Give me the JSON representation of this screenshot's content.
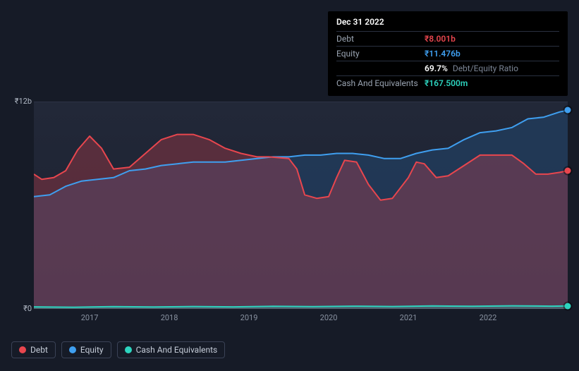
{
  "tooltip": {
    "date": "Dec 31 2022",
    "rows": [
      {
        "label": "Debt",
        "value": "₹8.001b",
        "cls": "val-debt"
      },
      {
        "label": "Equity",
        "value": "₹11.476b",
        "cls": "val-equity"
      },
      {
        "label": "",
        "ratio": "69.7%",
        "ratio_label": "Debt/Equity Ratio"
      },
      {
        "label": "Cash And Equivalents",
        "value": "₹167.500m",
        "cls": "val-cash"
      }
    ]
  },
  "chart": {
    "type": "area",
    "y": {
      "min": 0,
      "max": 12,
      "labels": [
        {
          "text": "₹12b",
          "v": 12
        },
        {
          "text": "₹0",
          "v": 0
        }
      ],
      "grid_color": "#3a4154"
    },
    "x": {
      "min": 2016.3,
      "max": 2023.0,
      "ticks": [
        {
          "text": "2017",
          "v": 2017
        },
        {
          "text": "2018",
          "v": 2018
        },
        {
          "text": "2019",
          "v": 2019
        },
        {
          "text": "2020",
          "v": 2020
        },
        {
          "text": "2021",
          "v": 2021
        },
        {
          "text": "2022",
          "v": 2022
        }
      ]
    },
    "series": [
      {
        "name": "Debt",
        "color": "#e8464e",
        "fill": "rgba(232,70,78,0.28)",
        "line_width": 2,
        "data": [
          [
            2016.3,
            7.8
          ],
          [
            2016.4,
            7.5
          ],
          [
            2016.55,
            7.6
          ],
          [
            2016.7,
            8.0
          ],
          [
            2016.85,
            9.2
          ],
          [
            2017.0,
            10.0
          ],
          [
            2017.15,
            9.3
          ],
          [
            2017.3,
            8.1
          ],
          [
            2017.5,
            8.2
          ],
          [
            2017.7,
            9.0
          ],
          [
            2017.9,
            9.8
          ],
          [
            2018.1,
            10.1
          ],
          [
            2018.3,
            10.1
          ],
          [
            2018.5,
            9.8
          ],
          [
            2018.7,
            9.3
          ],
          [
            2018.9,
            9.0
          ],
          [
            2019.1,
            8.8
          ],
          [
            2019.25,
            8.8
          ],
          [
            2019.5,
            8.7
          ],
          [
            2019.6,
            8.1
          ],
          [
            2019.7,
            6.6
          ],
          [
            2019.85,
            6.4
          ],
          [
            2020.0,
            6.5
          ],
          [
            2020.1,
            7.6
          ],
          [
            2020.2,
            8.6
          ],
          [
            2020.35,
            8.5
          ],
          [
            2020.5,
            7.2
          ],
          [
            2020.65,
            6.3
          ],
          [
            2020.8,
            6.4
          ],
          [
            2021.0,
            7.6
          ],
          [
            2021.1,
            8.5
          ],
          [
            2021.2,
            8.4
          ],
          [
            2021.35,
            7.6
          ],
          [
            2021.5,
            7.7
          ],
          [
            2021.7,
            8.3
          ],
          [
            2021.9,
            8.9
          ],
          [
            2022.1,
            8.9
          ],
          [
            2022.3,
            8.9
          ],
          [
            2022.45,
            8.4
          ],
          [
            2022.6,
            7.8
          ],
          [
            2022.75,
            7.8
          ],
          [
            2022.9,
            7.9
          ],
          [
            2023.0,
            8.0
          ]
        ]
      },
      {
        "name": "Equity",
        "color": "#3f9ff0",
        "fill": "rgba(35,71,112,0.55)",
        "line_width": 2,
        "data": [
          [
            2016.3,
            6.5
          ],
          [
            2016.5,
            6.6
          ],
          [
            2016.7,
            7.1
          ],
          [
            2016.9,
            7.4
          ],
          [
            2017.1,
            7.5
          ],
          [
            2017.3,
            7.6
          ],
          [
            2017.5,
            8.0
          ],
          [
            2017.7,
            8.1
          ],
          [
            2017.9,
            8.3
          ],
          [
            2018.1,
            8.4
          ],
          [
            2018.3,
            8.5
          ],
          [
            2018.5,
            8.5
          ],
          [
            2018.7,
            8.5
          ],
          [
            2018.9,
            8.6
          ],
          [
            2019.1,
            8.7
          ],
          [
            2019.3,
            8.8
          ],
          [
            2019.5,
            8.8
          ],
          [
            2019.7,
            8.9
          ],
          [
            2019.9,
            8.9
          ],
          [
            2020.1,
            9.0
          ],
          [
            2020.3,
            9.0
          ],
          [
            2020.5,
            8.9
          ],
          [
            2020.7,
            8.7
          ],
          [
            2020.9,
            8.7
          ],
          [
            2021.1,
            9.0
          ],
          [
            2021.3,
            9.2
          ],
          [
            2021.5,
            9.3
          ],
          [
            2021.7,
            9.8
          ],
          [
            2021.9,
            10.2
          ],
          [
            2022.1,
            10.3
          ],
          [
            2022.3,
            10.5
          ],
          [
            2022.5,
            11.0
          ],
          [
            2022.7,
            11.1
          ],
          [
            2022.9,
            11.4
          ],
          [
            2023.0,
            11.5
          ]
        ]
      },
      {
        "name": "Cash And Equivalents",
        "color": "#2dd4bf",
        "fill": "rgba(45,212,191,0.25)",
        "line_width": 2,
        "data": [
          [
            2016.3,
            0.12
          ],
          [
            2016.8,
            0.1
          ],
          [
            2017.3,
            0.13
          ],
          [
            2017.8,
            0.11
          ],
          [
            2018.3,
            0.14
          ],
          [
            2018.8,
            0.12
          ],
          [
            2019.3,
            0.15
          ],
          [
            2019.8,
            0.13
          ],
          [
            2020.3,
            0.16
          ],
          [
            2020.8,
            0.14
          ],
          [
            2021.3,
            0.17
          ],
          [
            2021.8,
            0.15
          ],
          [
            2022.3,
            0.18
          ],
          [
            2022.8,
            0.16
          ],
          [
            2023.0,
            0.17
          ]
        ]
      }
    ],
    "legend": {
      "items": [
        {
          "label": "Debt",
          "color": "#e8464e"
        },
        {
          "label": "Equity",
          "color": "#3f9ff0"
        },
        {
          "label": "Cash And Equivalents",
          "color": "#2dd4bf"
        }
      ]
    },
    "background_color": "#161b27",
    "plot_bg": "#1f2636"
  }
}
